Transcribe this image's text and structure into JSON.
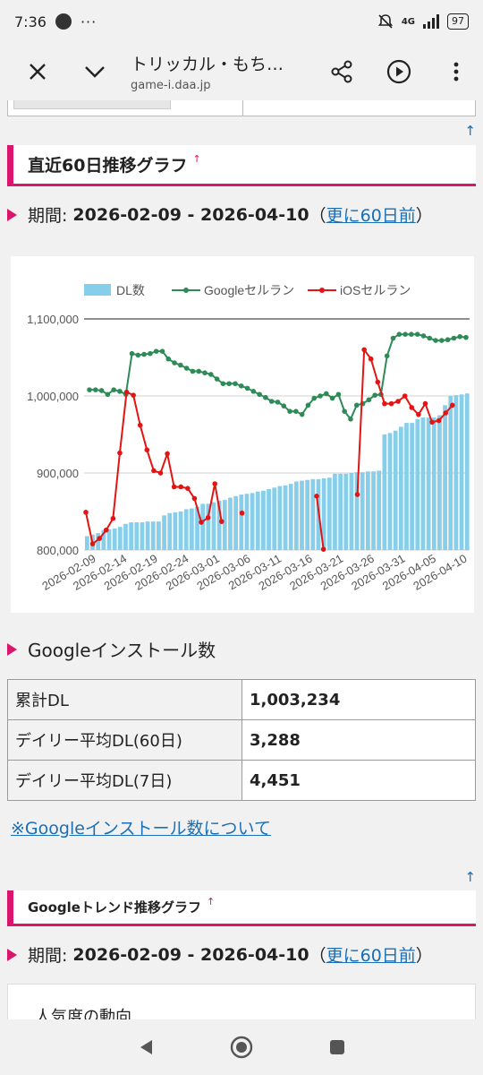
{
  "status": {
    "time": "7:36",
    "more": "···",
    "network": "4G",
    "battery": "97"
  },
  "toolbar": {
    "title": "トリッカル・もち…",
    "url": "game-i.daa.jp"
  },
  "uplink": "↑",
  "section1": {
    "title": "直近60日推移グラフ",
    "sup": "↑"
  },
  "period": {
    "label": "期間:",
    "range": "2026-02-09 - 2026-04-10",
    "open": "（",
    "link": "更に60日前",
    "close": "）"
  },
  "chart_data": {
    "type": "bar+line",
    "legend": [
      "DL数",
      "Googleセルラン",
      "iOSセルラン"
    ],
    "ylim": [
      800000,
      1100000
    ],
    "yticks": [
      "1,100,000",
      "1,000,000",
      "900,000",
      "800,000"
    ],
    "xticks": [
      "2026-02-09",
      "2026-02-14",
      "2026-02-19",
      "2026-02-24",
      "2026-03-01",
      "2026-03-06",
      "2026-03-11",
      "2026-03-16",
      "2026-03-21",
      "2026-03-26",
      "2026-03-31",
      "2026-04-05",
      "2026-04-10"
    ],
    "colors": {
      "dl": "#87ceeb",
      "google": "#2e8b57",
      "ios": "#e31414"
    },
    "series": [
      {
        "name": "DL数",
        "values": [
          818000,
          820000,
          822000,
          826000,
          827000,
          828000,
          830000,
          834000,
          836000,
          836000,
          836000,
          837000,
          837000,
          837000,
          845000,
          848000,
          849000,
          850000,
          853000,
          854000,
          856000,
          860000,
          860000,
          862000,
          864000,
          865000,
          868000,
          870000,
          872000,
          873000,
          874000,
          876000,
          877000,
          879000,
          881000,
          883000,
          884000,
          886000,
          889000,
          890000,
          891000,
          892000,
          892000,
          893000,
          894000,
          899000,
          899000,
          899000,
          900000,
          901000,
          901000,
          902000,
          902000,
          903000,
          950000,
          952000,
          955000,
          960000,
          965000,
          965000,
          970000,
          972000,
          972000,
          972000,
          975000,
          988000,
          1000000,
          1001000,
          1002000,
          1003234
        ]
      },
      {
        "name": "Googleセルラン",
        "values": [
          1008000,
          1008000,
          1007000,
          1002000,
          1008000,
          1006000,
          1002000,
          1055000,
          1053000,
          1054000,
          1055000,
          1058000,
          1058000,
          1048000,
          1043000,
          1040000,
          1036000,
          1032000,
          1032000,
          1030000,
          1028000,
          1022000,
          1016000,
          1016000,
          1016000,
          1013000,
          1010000,
          1006000,
          1002000,
          998000,
          993000,
          992000,
          987000,
          980000,
          980000,
          976000,
          988000,
          997000,
          1000000,
          1003000,
          997000,
          1002000,
          980000,
          970000,
          988000,
          990000,
          995000,
          1001000,
          1002000,
          1052000,
          1075000,
          1080000,
          1080000,
          1080000,
          1080000,
          1078000,
          1075000,
          1072000,
          1072000,
          1073000,
          1075000,
          1077000,
          1076000
        ]
      },
      {
        "name": "iOSセルラン",
        "segments": [
          [
            849000,
            808000,
            815000,
            826000,
            841000,
            926000,
            1005000,
            1001000,
            962000,
            930000,
            903000,
            900000,
            925000,
            882000,
            882000,
            880000,
            867000,
            836000,
            842000,
            886000,
            837000
          ],
          [
            848000
          ],
          [
            870000,
            801000
          ],
          [
            872000,
            1060000,
            1048000,
            1018000,
            990000,
            990000,
            993000,
            1000000,
            985000,
            976000,
            990000,
            966000,
            968000,
            978000,
            988000
          ]
        ]
      }
    ]
  },
  "google_section": {
    "title": "Googleインストール数",
    "rows": [
      {
        "label": "累計DL",
        "value": "1,003,234"
      },
      {
        "label": "デイリー平均DL(60日)",
        "value": "3,288"
      },
      {
        "label": "デイリー平均DL(7日)",
        "value": "4,451"
      }
    ],
    "note_link": "※Googleインストール数について"
  },
  "trend": {
    "title": "Googleトレンド推移グラフ",
    "sup": "↑",
    "period_label": "期間:",
    "range": "2026-02-09 - 2026-04-10",
    "open": "（",
    "link": "更に60日前",
    "close": "）",
    "card_title": "人気度の動向"
  }
}
